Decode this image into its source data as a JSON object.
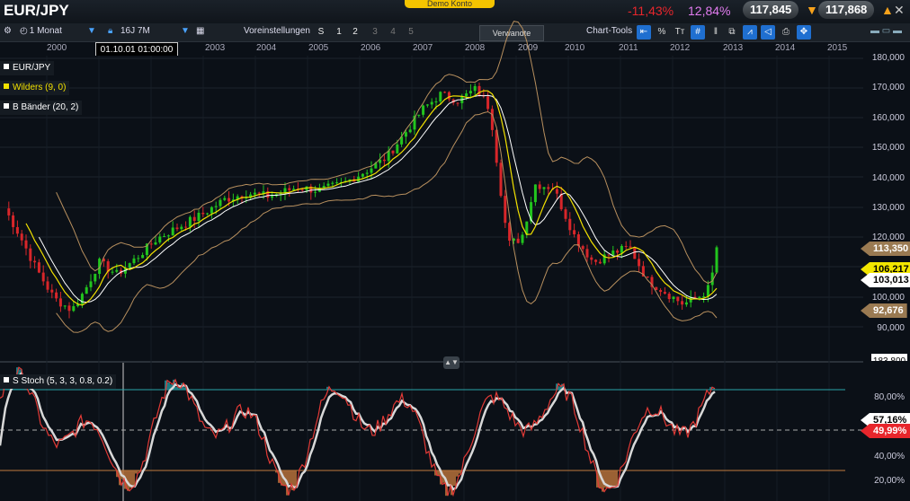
{
  "header": {
    "symbol": "EUR/JPY",
    "demo_label": "Demo Konto",
    "change_neg": "-11,43%",
    "change_pos": "12,84%",
    "sell_price": "117,845",
    "buy_price": "117,868",
    "close_glyph": "✕"
  },
  "toolbar": {
    "interval": "1 Monat",
    "range": "16J 7M",
    "presets_label": "Voreinstellungen",
    "preset_s": "S",
    "presets": [
      "1",
      "2",
      "3",
      "4",
      "5"
    ],
    "related_label": "Verwandte",
    "tools_label": "Chart-Tools",
    "percent_label": "%"
  },
  "timeline": {
    "cursor_date": "01.10.01 01:00:00",
    "years": [
      "2000",
      "2002",
      "2003",
      "2004",
      "2005",
      "2006",
      "2007",
      "2008",
      "2009",
      "2010",
      "2011",
      "2012",
      "2013",
      "2014",
      "2015"
    ]
  },
  "legends": {
    "main": "EUR/JPY",
    "wilders": "Wilders (9, 0)",
    "bands": "B Bänder (20, 2)",
    "stoch": "S Stoch (5, 3, 3, 0.8, 0.2)"
  },
  "axis_main": {
    "labels": [
      "180,000",
      "170,000",
      "160,000",
      "150,000",
      "140,000",
      "130,000",
      "120,000",
      "110,000",
      "100,000",
      "90,000"
    ],
    "tag_band_upper": "113,350",
    "tag_wilders": "106,217",
    "tag_close": "103,013",
    "tag_band_lower": "92,676",
    "tag_cut": "183,800"
  },
  "axis_stoch": {
    "labels": [
      "80,00%",
      "60,00%",
      "40,00%",
      "20,00%"
    ],
    "tag_k": "57,16%",
    "tag_d": "49,99%"
  },
  "colors": {
    "bull": "#22c51e",
    "bear": "#d8262a",
    "wilders": "#f2e100",
    "bands": "#b78f5e",
    "sma": "#ffffff",
    "stoch_k": "#e23a36",
    "stoch_d": "#d8d8d8",
    "overbought_fill": "#1f8e95",
    "oversold_fill": "#b5703a"
  }
}
